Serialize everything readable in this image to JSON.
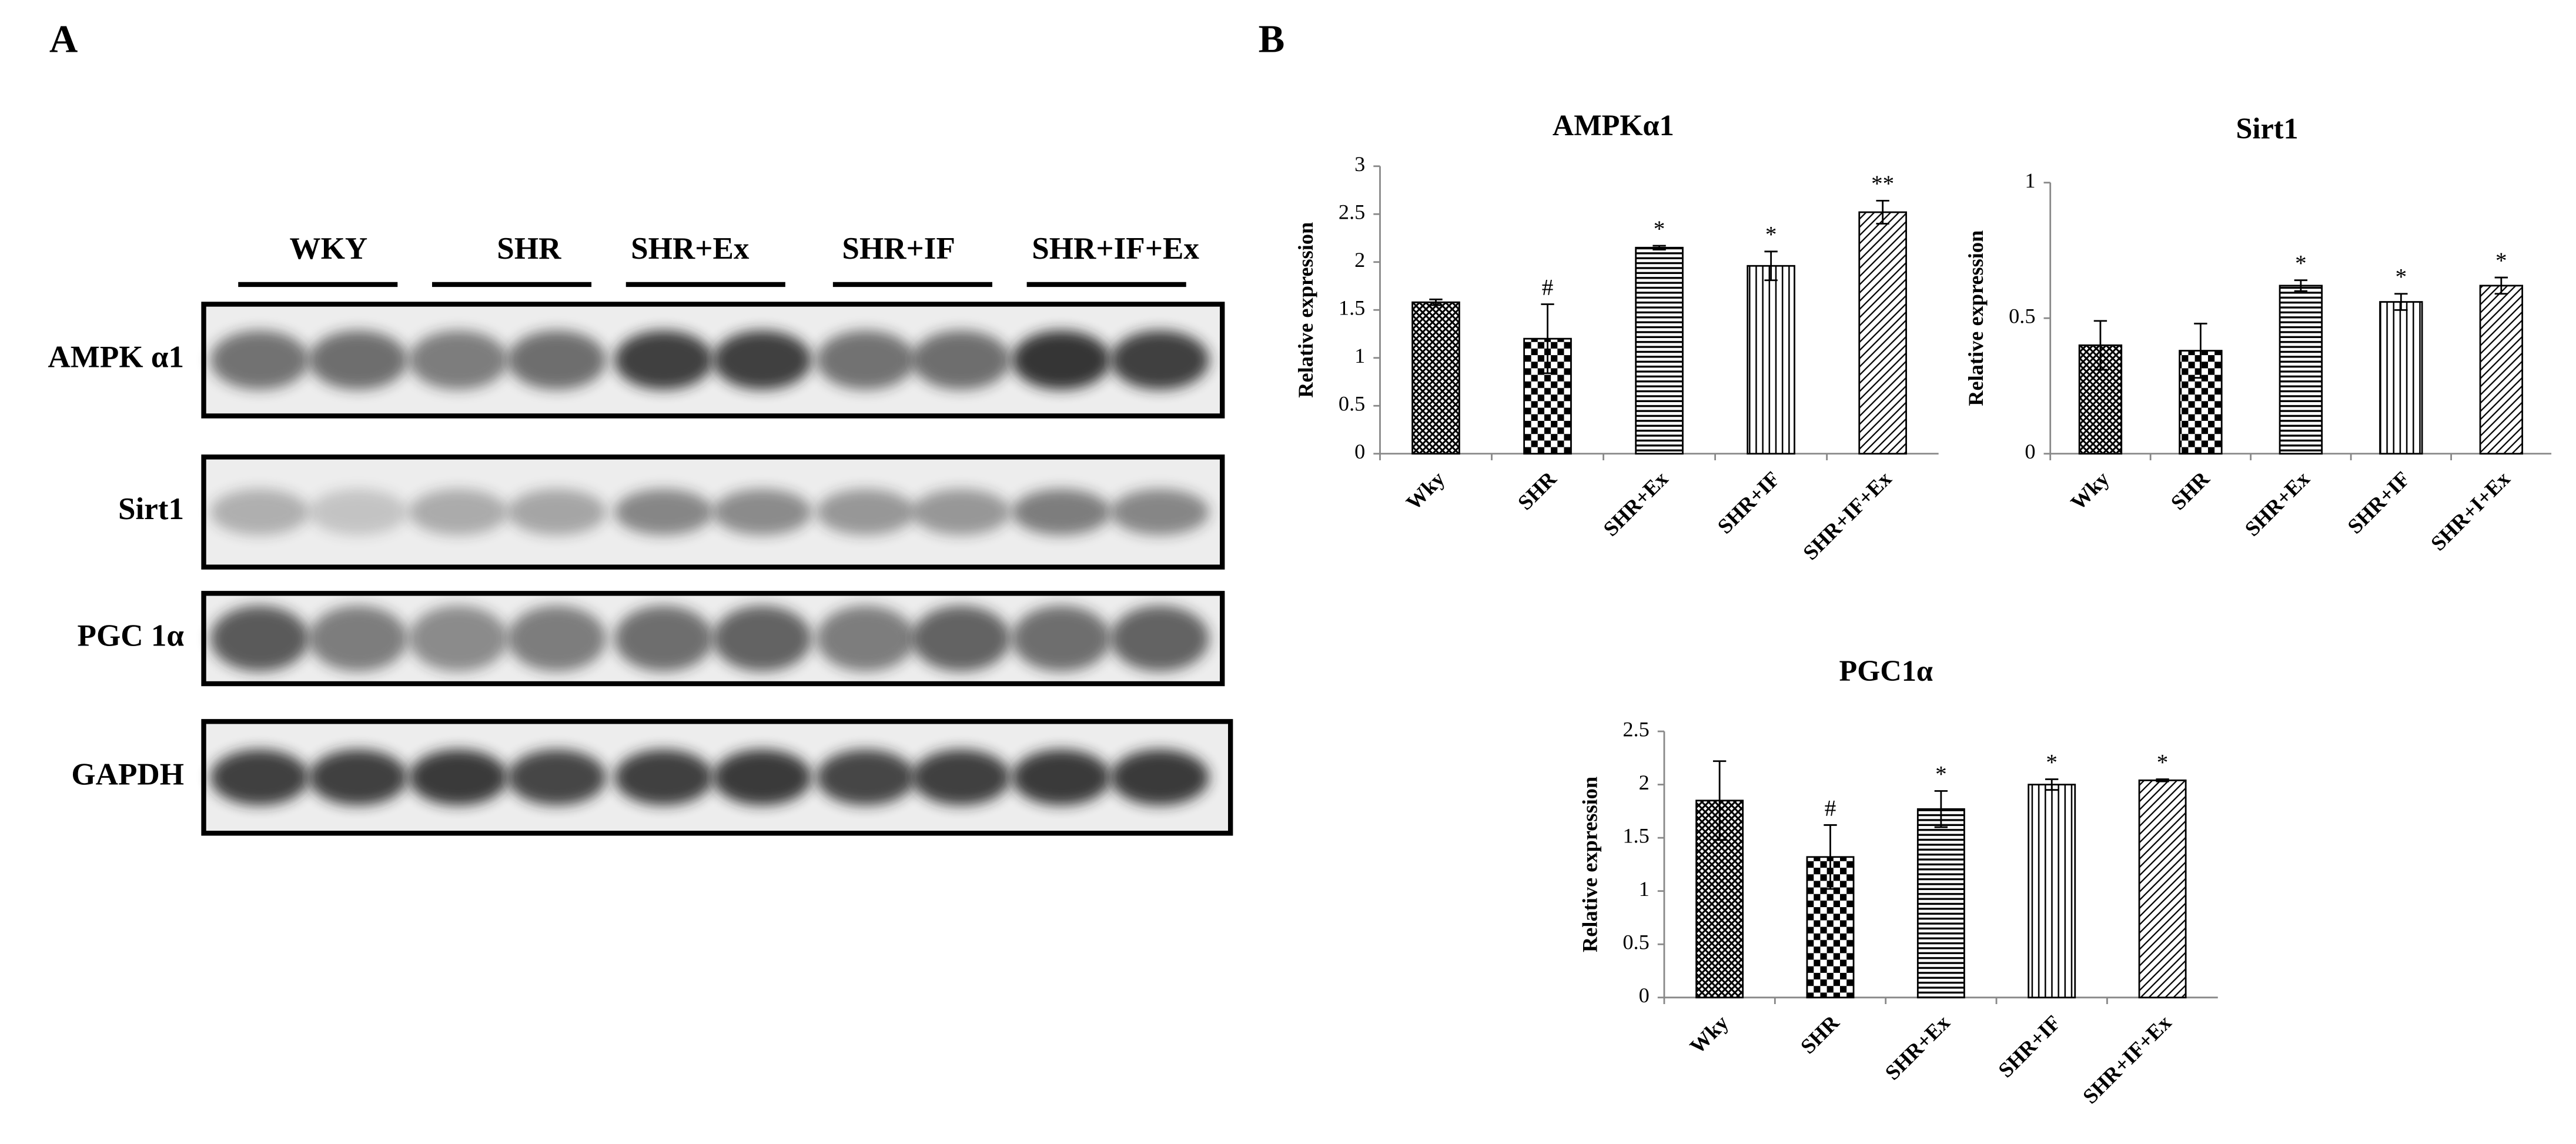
{
  "panel_labels": [
    "A",
    "B"
  ],
  "blot": {
    "groups": [
      "WKY",
      "SHR",
      "SHR+Ex",
      "SHR+IF",
      "SHR+IF+Ex"
    ],
    "proteins": [
      "AMPK α1",
      "Sirt1",
      "PGC 1α",
      "GAPDH"
    ]
  },
  "chart_data": [
    {
      "type": "bar",
      "title": "AMPKα1",
      "y_label": "Relative expression",
      "categories": [
        "Wky",
        "SHR",
        "SHR+Ex",
        "SHR+IF",
        "SHR+IF+Ex"
      ],
      "values": [
        1.58,
        1.2,
        2.15,
        1.96,
        2.52
      ],
      "errors": [
        0.03,
        0.36,
        0.02,
        0.15,
        0.12
      ],
      "markers": [
        null,
        "#",
        "*",
        "*",
        "**"
      ],
      "patterns": [
        "crosshatch",
        "checker",
        "horizontal",
        "vertical",
        "diagonal"
      ],
      "color": "#000000",
      "ylim": [
        0,
        3
      ],
      "yticks": [
        0,
        0.5,
        1,
        1.5,
        2,
        2.5,
        3
      ]
    },
    {
      "type": "bar",
      "title": "Sirt1",
      "y_label": "Relative expression",
      "categories": [
        "Wky",
        "SHR",
        "SHR+Ex",
        "SHR+IF",
        "SHR+I+Ex"
      ],
      "values": [
        0.4,
        0.38,
        0.62,
        0.56,
        0.62
      ],
      "errors": [
        0.09,
        0.1,
        0.02,
        0.03,
        0.03
      ],
      "markers": [
        null,
        null,
        "*",
        "*",
        "*"
      ],
      "patterns": [
        "crosshatch",
        "checker",
        "horizontal",
        "vertical",
        "diagonal"
      ],
      "color": "#000000",
      "ylim": [
        0,
        1
      ],
      "yticks": [
        0,
        0.5,
        1
      ]
    },
    {
      "type": "bar",
      "title": "PGC1α",
      "y_label": "Relative expression",
      "categories": [
        "Wky",
        "SHR",
        "SHR+Ex",
        "SHR+IF",
        "SHR+IF+Ex"
      ],
      "values": [
        1.85,
        1.32,
        1.77,
        2.0,
        2.04
      ],
      "errors": [
        0.37,
        0.3,
        0.17,
        0.05,
        0.01
      ],
      "markers": [
        null,
        "#",
        "*",
        "*",
        "*"
      ],
      "patterns": [
        "crosshatch",
        "checker",
        "horizontal",
        "vertical",
        "diagonal"
      ],
      "color": "#000000",
      "ylim": [
        0,
        2.5
      ],
      "yticks": [
        0,
        0.5,
        1,
        1.5,
        2,
        2.5
      ]
    }
  ]
}
